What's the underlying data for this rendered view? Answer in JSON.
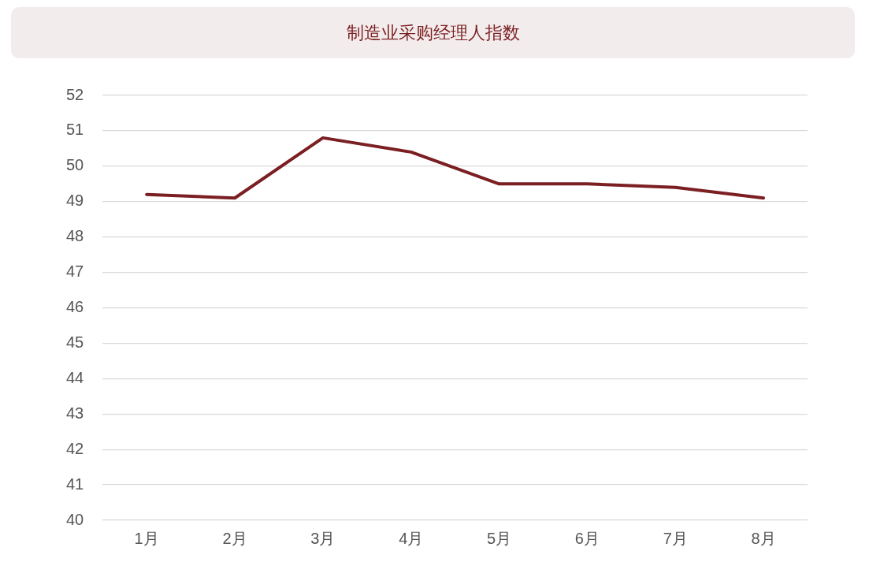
{
  "chart_data": {
    "type": "line",
    "title": "制造业采购经理人指数",
    "categories": [
      "1月",
      "2月",
      "3月",
      "4月",
      "5月",
      "6月",
      "7月",
      "8月"
    ],
    "series": [
      {
        "color": "#7b1f22",
        "values": [
          49.2,
          49.1,
          50.8,
          50.4,
          49.5,
          49.5,
          49.4,
          49.1
        ]
      }
    ],
    "ylim": [
      40,
      52
    ],
    "yticks": [
      40,
      41,
      42,
      43,
      44,
      45,
      46,
      47,
      48,
      49,
      50,
      51,
      52
    ],
    "grid": "y",
    "legend": false,
    "marker": "none",
    "line_style": "solid"
  }
}
